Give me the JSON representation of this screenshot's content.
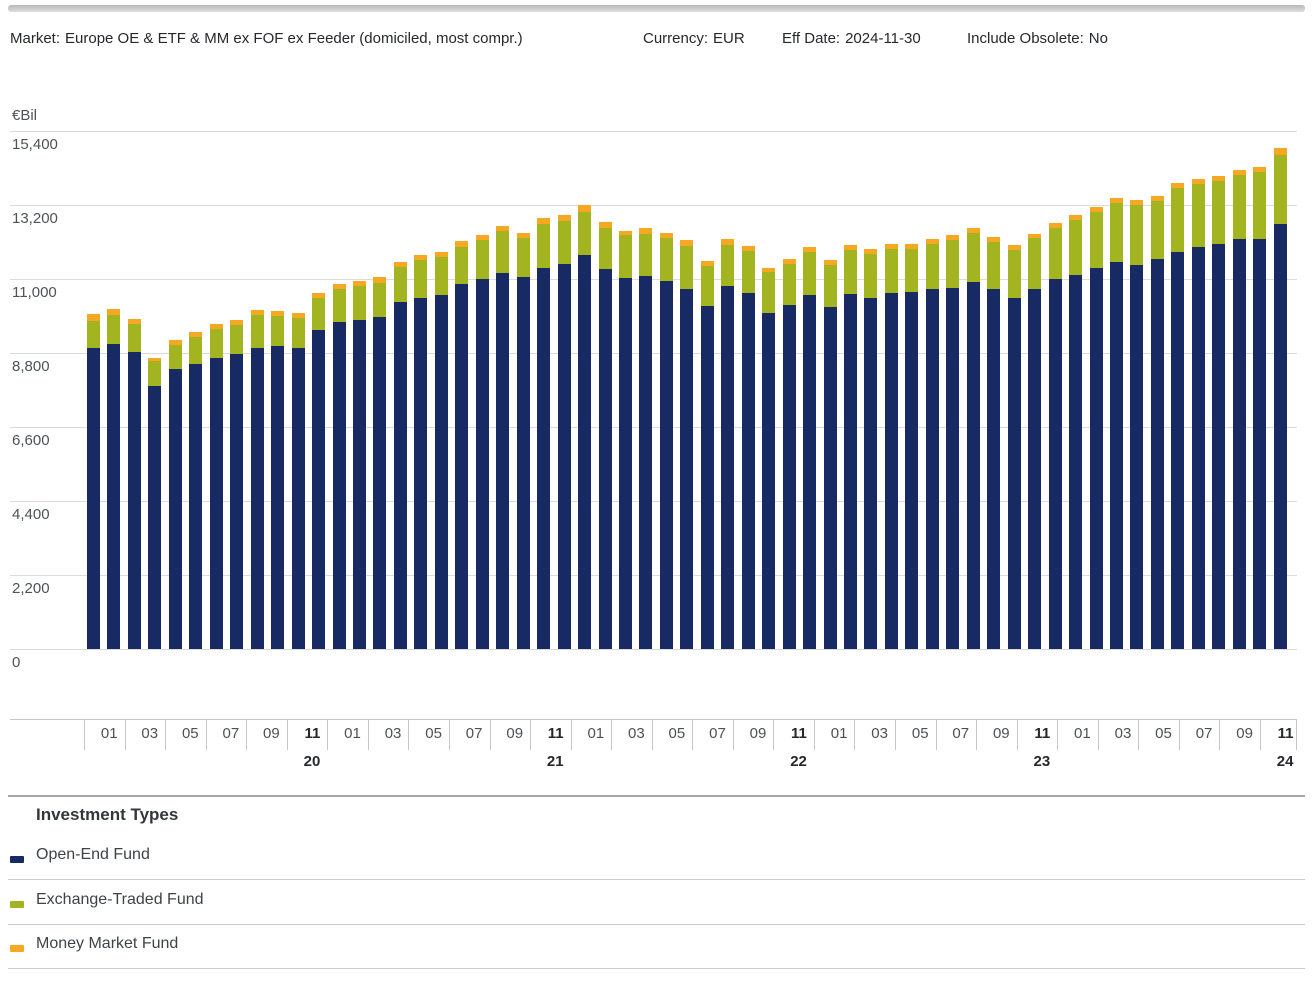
{
  "header": {
    "market_label": "Market:",
    "market_value": "Europe OE & ETF & MM ex FOF ex Feeder (domiciled, most compr.)",
    "currency_label": "Currency:",
    "currency_value": "EUR",
    "eff_date_label": "Eff Date:",
    "eff_date_value": "2024-11-30",
    "include_obsolete_label": "Include Obsolete:",
    "include_obsolete_value": "No"
  },
  "chart_data": {
    "type": "bar",
    "stacked": true,
    "unit_label": "€Bil",
    "ylim": [
      0,
      15400
    ],
    "ytick_interval": 2200,
    "ytick_labels": [
      "0",
      "2,200",
      "4,400",
      "6,600",
      "8,800",
      "11,000",
      "13,200",
      "15,400"
    ],
    "grid": true,
    "legend_position": "bottom",
    "x": [
      "2020-01",
      "2020-02",
      "2020-03",
      "2020-04",
      "2020-05",
      "2020-06",
      "2020-07",
      "2020-08",
      "2020-09",
      "2020-10",
      "2020-11",
      "2020-12",
      "2021-01",
      "2021-02",
      "2021-03",
      "2021-04",
      "2021-05",
      "2021-06",
      "2021-07",
      "2021-08",
      "2021-09",
      "2021-10",
      "2021-11",
      "2021-12",
      "2022-01",
      "2022-02",
      "2022-03",
      "2022-04",
      "2022-05",
      "2022-06",
      "2022-07",
      "2022-08",
      "2022-09",
      "2022-10",
      "2022-11",
      "2022-12",
      "2023-01",
      "2023-02",
      "2023-03",
      "2023-04",
      "2023-05",
      "2023-06",
      "2023-07",
      "2023-08",
      "2023-09",
      "2023-10",
      "2023-11",
      "2023-12",
      "2024-01",
      "2024-02",
      "2024-03",
      "2024-04",
      "2024-05",
      "2024-06",
      "2024-07",
      "2024-08",
      "2024-09",
      "2024-10",
      "2024-11"
    ],
    "series": [
      {
        "name": "Open-End Fund",
        "color": "#172a64",
        "values": [
          8955,
          9055,
          8825,
          7815,
          8330,
          8460,
          8660,
          8755,
          8955,
          9005,
          8955,
          9470,
          9730,
          9795,
          9865,
          10310,
          10440,
          10520,
          10860,
          10985,
          11185,
          11065,
          11330,
          11450,
          11700,
          11285,
          11035,
          11085,
          10935,
          10710,
          10210,
          10785,
          10570,
          10000,
          10240,
          10520,
          10165,
          10540,
          10420,
          10590,
          10610,
          10690,
          10740,
          10915,
          10710,
          10440,
          10690,
          10985,
          11115,
          11315,
          11510,
          11430,
          11580,
          11800,
          11945,
          12045,
          12175,
          12175,
          12620
        ]
      },
      {
        "name": "Exchange-Traded Fund",
        "color": "#a2b41f",
        "values": [
          790,
          870,
          825,
          745,
          720,
          820,
          860,
          890,
          960,
          890,
          890,
          970,
          980,
          990,
          1025,
          1050,
          1110,
          1130,
          1100,
          1160,
          1240,
          1140,
          1310,
          1270,
          1295,
          1240,
          1260,
          1260,
          1290,
          1285,
          1190,
          1240,
          1255,
          1200,
          1210,
          1280,
          1240,
          1310,
          1330,
          1310,
          1290,
          1340,
          1410,
          1455,
          1395,
          1435,
          1515,
          1535,
          1645,
          1690,
          1745,
          1755,
          1750,
          1910,
          1865,
          1880,
          1910,
          2000,
          2055
        ]
      },
      {
        "name": "Money Market Fund",
        "color": "#f7a823",
        "values": [
          200,
          170,
          150,
          100,
          150,
          150,
          150,
          150,
          150,
          150,
          150,
          150,
          150,
          150,
          165,
          150,
          150,
          150,
          165,
          160,
          150,
          150,
          180,
          170,
          195,
          180,
          130,
          160,
          150,
          150,
          150,
          150,
          150,
          130,
          150,
          160,
          150,
          150,
          150,
          150,
          150,
          150,
          150,
          150,
          140,
          130,
          140,
          150,
          150,
          150,
          160,
          150,
          150,
          150,
          150,
          150,
          170,
          160,
          205
        ]
      }
    ],
    "x_axis": {
      "cell_months": [
        "01",
        "03",
        "05",
        "07",
        "09",
        "11"
      ],
      "bold_month": "11",
      "years": [
        "20",
        "21",
        "22",
        "23",
        "24"
      ]
    }
  },
  "legend": {
    "title": "Investment Types"
  }
}
